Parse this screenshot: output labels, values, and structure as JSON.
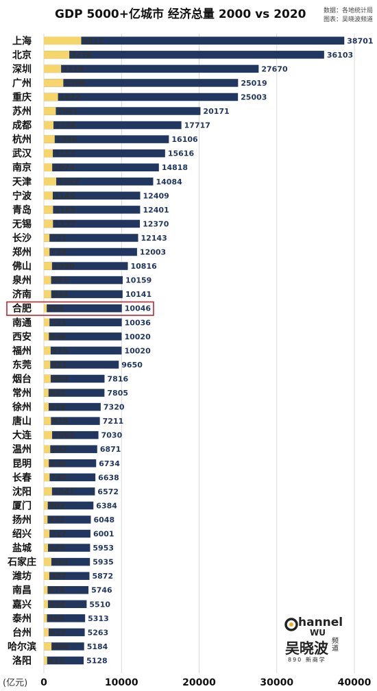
{
  "title": "GDP 5000+亿城市 经济总量 2000 vs 2020",
  "source_lines": [
    "数据：各地统计局",
    "图表：吴晓波频道"
  ],
  "colors": {
    "bar_2020": "#213760",
    "bar_2000": "#f6d56a",
    "label_2000": "#333333",
    "label_2020": "#213760",
    "highlight_box": "#c0242b",
    "grid": "#d9d9d9"
  },
  "logo": {
    "top": "hannel",
    "middle": "WU",
    "brand": "吴晓波",
    "side": "频道",
    "bottom": "890 新商学"
  },
  "chart_data": {
    "type": "bar",
    "orientation": "horizontal",
    "overlapping_series": true,
    "unit_label": "(亿元)",
    "xlim": [
      0,
      40000
    ],
    "xticks": [
      0,
      10000,
      20000,
      30000,
      40000
    ],
    "grid": true,
    "highlighted_category": "合肥",
    "categories": [
      "上海",
      "北京",
      "深圳",
      "广州",
      "重庆",
      "苏州",
      "成都",
      "杭州",
      "武汉",
      "南京",
      "天津",
      "宁波",
      "青岛",
      "无锡",
      "长沙",
      "郑州",
      "佛山",
      "泉州",
      "济南",
      "合肥",
      "南通",
      "西安",
      "福州",
      "东莞",
      "烟台",
      "常州",
      "徐州",
      "唐山",
      "大连",
      "温州",
      "昆明",
      "长春",
      "沈阳",
      "厦门",
      "扬州",
      "绍兴",
      "盐城",
      "石家庄",
      "潍坊",
      "南昌",
      "嘉兴",
      "泰州",
      "台州",
      "哈尔滨",
      "洛阳"
    ],
    "series": [
      {
        "name": "2020",
        "values": [
          38701,
          36103,
          27670,
          25019,
          25003,
          20171,
          17717,
          16106,
          15616,
          14818,
          14084,
          12409,
          12401,
          12370,
          12143,
          12003,
          10816,
          10159,
          10141,
          10046,
          10036,
          10020,
          10020,
          9650,
          7816,
          7805,
          7320,
          7211,
          7030,
          6871,
          6734,
          6638,
          6572,
          6384,
          6048,
          6001,
          5953,
          5935,
          5872,
          5746,
          5510,
          5313,
          5263,
          5184,
          5128
        ]
      },
      {
        "name": "2000",
        "values": [
          4812,
          3278,
          2219,
          2506,
          1822,
          1541,
          1238,
          1396,
          1153,
          1074,
          1592,
          1145,
          1183,
          1177,
          721,
          728,
          1050,
          931,
          944,
          369,
          721,
          646,
          876,
          821,
          880,
          601,
          616,
          915,
          1062,
          822,
          636,
          740,
          1047,
          502,
          472,
          717,
          529,
          963,
          697,
          476,
          524,
          399,
          613,
          980,
          423
        ]
      }
    ]
  }
}
